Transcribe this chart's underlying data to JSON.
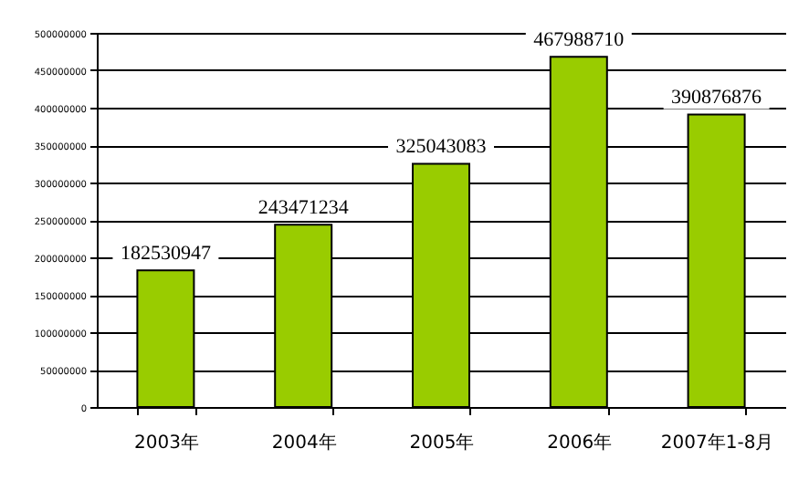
{
  "chart_data": {
    "type": "bar",
    "categories": [
      "2003年",
      "2004年",
      "2005年",
      "2006年",
      "2007年1-8月"
    ],
    "values": [
      182530947,
      243471234,
      325043083,
      467988710,
      390876876
    ],
    "color": "#99cc00",
    "ylim": [
      0,
      500000000
    ],
    "yticks": [
      0,
      50000000,
      100000000,
      150000000,
      200000000,
      250000000,
      300000000,
      350000000,
      400000000,
      450000000,
      500000000
    ],
    "grid": "y",
    "data_labels": true
  }
}
